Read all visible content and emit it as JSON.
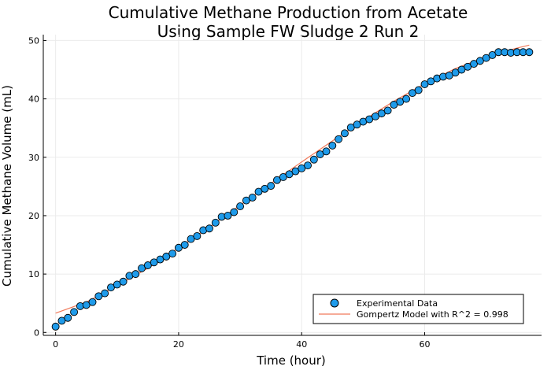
{
  "chart_data": {
    "type": "scatter",
    "title": "Cumulative Methane Production from Acetate",
    "subtitle": "Using Sample FW Sludge 2 Run 2",
    "xlabel": "Time (hour)",
    "ylabel": "Cumulative Methane Volume (mL)",
    "xlim": [
      -2,
      79
    ],
    "ylim": [
      -0.5,
      51
    ],
    "xticks": [
      0,
      20,
      40,
      60
    ],
    "yticks": [
      0,
      10,
      20,
      30,
      40,
      50
    ],
    "grid": true,
    "legend_position": "bottom-right",
    "series": [
      {
        "name": "Experimental Data",
        "kind": "scatter",
        "color": "#1f9bea",
        "x": [
          0,
          1,
          2,
          3,
          4,
          5,
          6,
          7,
          8,
          9,
          10,
          11,
          12,
          13,
          14,
          15,
          16,
          17,
          18,
          19,
          20,
          21,
          22,
          23,
          24,
          25,
          26,
          27,
          28,
          29,
          30,
          31,
          32,
          33,
          34,
          35,
          36,
          37,
          38,
          39,
          40,
          41,
          42,
          43,
          44,
          45,
          46,
          47,
          48,
          49,
          50,
          51,
          52,
          53,
          54,
          55,
          56,
          57,
          58,
          59,
          60,
          61,
          62,
          63,
          64,
          65,
          66,
          67,
          68,
          69,
          70,
          71,
          72,
          73,
          74,
          75,
          76,
          77
        ],
        "y": [
          1.0,
          2.0,
          2.5,
          3.5,
          4.5,
          4.7,
          5.2,
          6.2,
          6.7,
          7.7,
          8.2,
          8.7,
          9.7,
          10.0,
          11.0,
          11.5,
          12.0,
          12.5,
          13.0,
          13.5,
          14.5,
          15.0,
          16.0,
          16.5,
          17.5,
          17.8,
          18.8,
          19.8,
          20.0,
          20.6,
          21.6,
          22.6,
          23.1,
          24.1,
          24.6,
          25.1,
          26.1,
          26.6,
          27.1,
          27.6,
          28.1,
          28.6,
          29.6,
          30.5,
          31.0,
          32.0,
          33.1,
          34.1,
          35.1,
          35.6,
          36.1,
          36.5,
          37.0,
          37.5,
          38.0,
          39.0,
          39.5,
          40.0,
          41.0,
          41.5,
          42.5,
          43.0,
          43.5,
          43.8,
          44.0,
          44.5,
          45.0,
          45.5,
          46.0,
          46.5,
          47.0,
          47.5,
          48.0,
          48.0,
          47.9,
          48.0,
          48.0,
          48.0
        ]
      },
      {
        "name": "Gompertz Model with R^2 = 0.998",
        "kind": "line",
        "color": "#f0795a",
        "x": [
          0,
          5,
          10,
          15,
          20,
          25,
          30,
          35,
          40,
          45,
          50,
          55,
          60,
          65,
          70,
          75,
          77
        ],
        "y": [
          3.3,
          5.2,
          8.0,
          11.0,
          14.5,
          18.0,
          21.8,
          25.5,
          29.2,
          32.8,
          36.3,
          39.6,
          42.6,
          45.2,
          47.2,
          48.7,
          49.2
        ]
      }
    ]
  }
}
